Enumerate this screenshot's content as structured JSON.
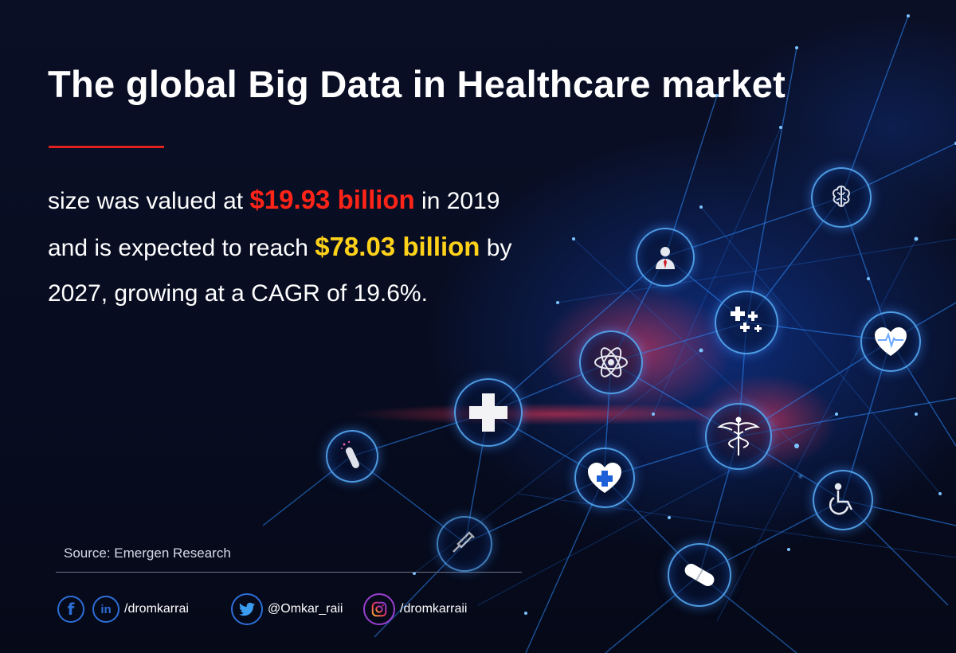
{
  "headline": "The global Big Data in Healthcare market",
  "body": {
    "part1": "size was valued at ",
    "highlight1": "$19.93 billion",
    "part2": " in 2019 and is expected to reach ",
    "highlight2": "$78.03 billion",
    "part3": " by 2027, growing at a CAGR of 19.6%."
  },
  "source": "Source: Emergen Research",
  "social": {
    "facebook_glyph": "f",
    "linkedin_glyph": "in",
    "linkedin_handle": "/dromkarrai",
    "twitter_handle": "@Omkar_raii",
    "instagram_handle": "/dromkarraii"
  },
  "colors": {
    "background": "#070c20",
    "accent_red": "#ff2418",
    "accent_yellow": "#ffd21a",
    "network_blue": "#2d8cff",
    "title_rule": "#e0201c"
  },
  "icons": [
    "brain-icon",
    "doctor-icon",
    "medical-crosses-icon",
    "heartbeat-icon",
    "atom-icon",
    "medical-cross-icon",
    "caduceus-icon",
    "test-tube-icon",
    "heart-cross-icon",
    "wheelchair-icon",
    "syringe-icon",
    "pill-icon"
  ]
}
